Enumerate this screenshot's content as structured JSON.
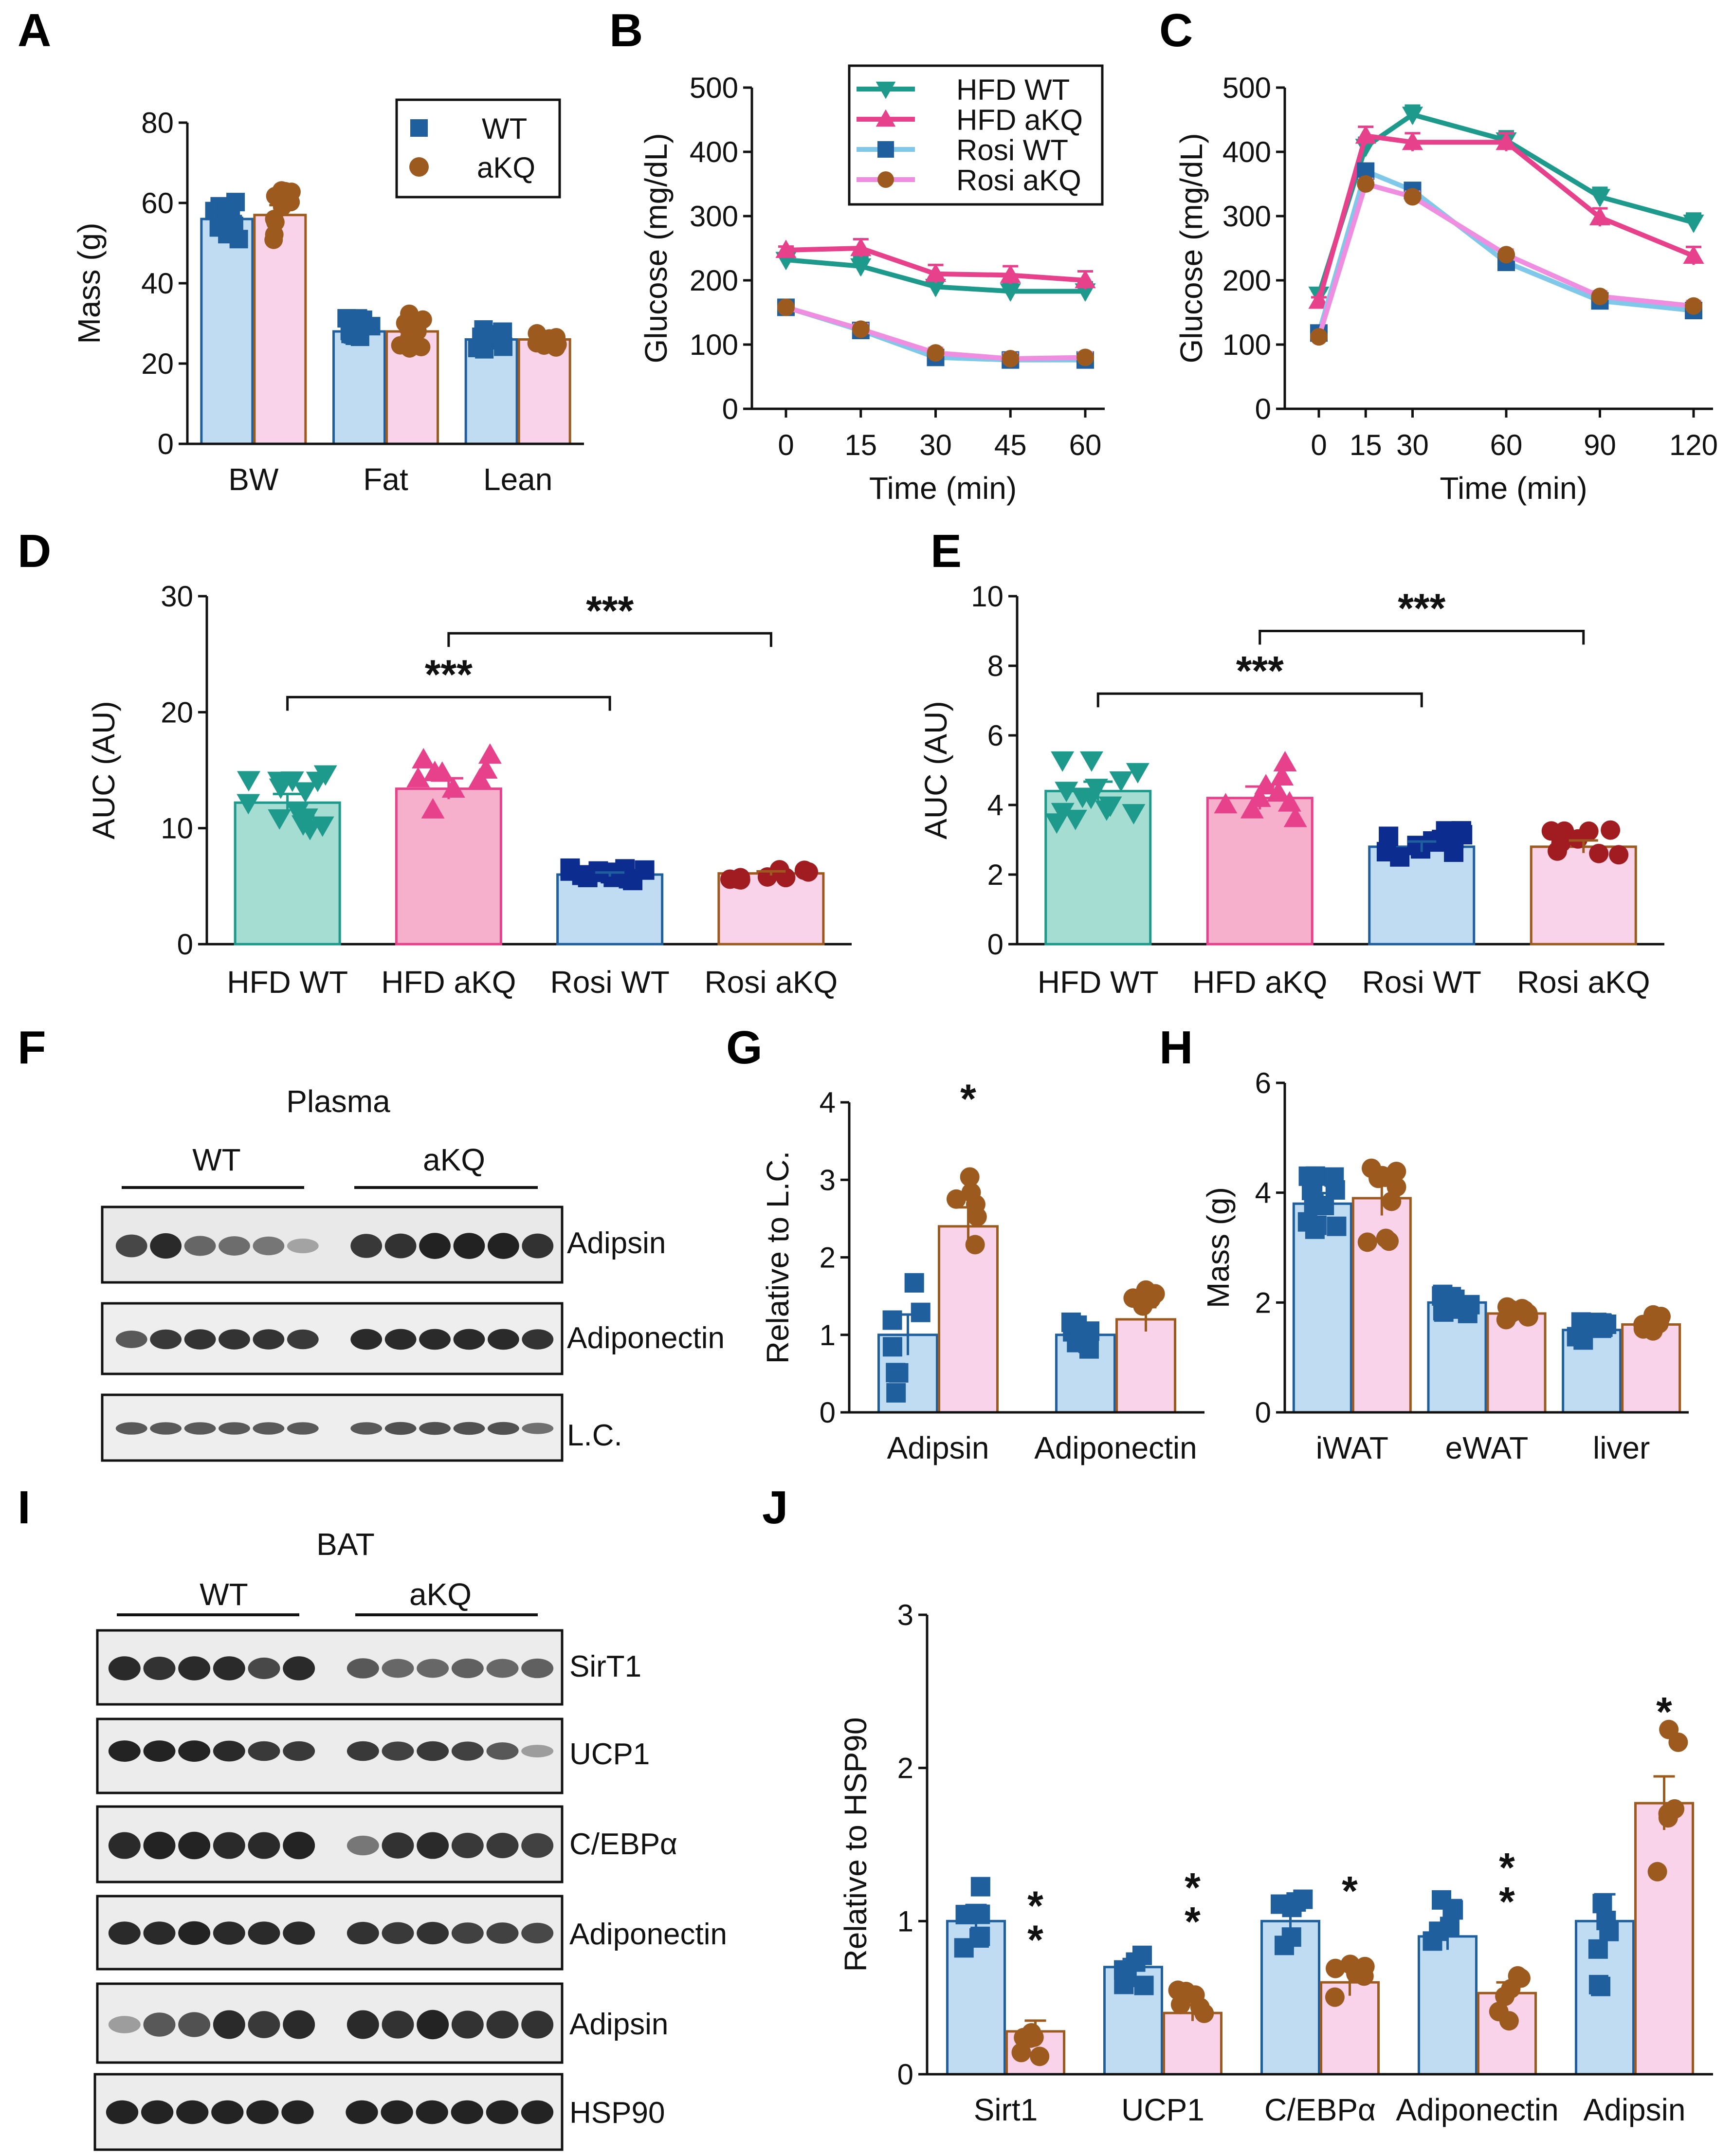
{
  "panel_letters": [
    "A",
    "B",
    "C",
    "D",
    "E",
    "F",
    "G",
    "H",
    "I",
    "J"
  ],
  "colors": {
    "wt_dark": "#1f5f9e",
    "wt_fill": "#bfdcf3",
    "akq_dark": "#9c5a1f",
    "akq_fill": "#f9d3ea",
    "hfd_wt": "#1d9a8c",
    "hfd_akq": "#e8418c",
    "rosi_wt_line": "#7fc8ea",
    "rosi_wt_marker": "#1f5f9e",
    "rosi_akq_line": "#ef8ee0",
    "rosi_akq_marker": "#9c5a1f",
    "d_hfd_wt_fill": "#a6ddd3",
    "d_hfd_akq_fill": "#f7b0cc",
    "d_rosi_wt_fill": "#bfdcf3",
    "d_rosi_akq_fill": "#f9d3ea",
    "d_rosi_wt_marker": "#0d2c8f",
    "d_rosi_akq_marker": "#a01c20"
  },
  "chart_data": [
    {
      "id": "A",
      "type": "bar",
      "title": "",
      "ylabel": "Mass (g)",
      "xlabel": "",
      "ylim": [
        0,
        80
      ],
      "yticks": [
        0,
        20,
        40,
        60,
        80
      ],
      "categories": [
        "BW",
        "Fat",
        "Lean"
      ],
      "legend": [
        "WT",
        "aKQ"
      ],
      "legend_position": "top-right",
      "series": [
        {
          "name": "WT",
          "values": [
            56,
            28,
            26
          ]
        },
        {
          "name": "aKQ",
          "values": [
            57,
            28,
            26
          ]
        }
      ]
    },
    {
      "id": "B",
      "type": "line",
      "ylabel": "Glucose (mg/dL)",
      "xlabel": "Time (min)",
      "ylim": [
        0,
        500
      ],
      "yticks": [
        0,
        100,
        200,
        300,
        400,
        500
      ],
      "x": [
        0,
        15,
        30,
        45,
        60
      ],
      "legend_position": "top-right",
      "series": [
        {
          "name": "HFD WT",
          "values": [
            232,
            222,
            190,
            183,
            183
          ]
        },
        {
          "name": "HFD aKQ",
          "values": [
            247,
            250,
            210,
            208,
            200
          ]
        },
        {
          "name": "Rosi WT",
          "values": [
            158,
            122,
            80,
            76,
            76
          ]
        },
        {
          "name": "Rosi aKQ",
          "values": [
            158,
            124,
            87,
            78,
            80
          ]
        }
      ]
    },
    {
      "id": "C",
      "type": "line",
      "ylabel": "Glucose (mg/dL)",
      "xlabel": "Time (min)",
      "ylim": [
        0,
        500
      ],
      "yticks": [
        0,
        100,
        200,
        300,
        400,
        500
      ],
      "x": [
        0,
        15,
        30,
        60,
        90,
        120
      ],
      "series": [
        {
          "name": "HFD WT",
          "values": [
            178,
            408,
            458,
            418,
            330,
            290
          ]
        },
        {
          "name": "HFD aKQ",
          "values": [
            168,
            425,
            415,
            415,
            298,
            238
          ]
        },
        {
          "name": "Rosi WT",
          "values": [
            118,
            370,
            340,
            228,
            168,
            153
          ]
        },
        {
          "name": "Rosi aKQ",
          "values": [
            112,
            350,
            330,
            240,
            175,
            160
          ]
        }
      ]
    },
    {
      "id": "D",
      "type": "bar",
      "ylabel": "AUC (AU)",
      "xlabel": "",
      "ylim": [
        0,
        30
      ],
      "yticks": [
        0,
        10,
        20,
        30
      ],
      "categories": [
        "HFD WT",
        "HFD aKQ",
        "Rosi WT",
        "Rosi aKQ"
      ],
      "values": [
        12.2,
        13.4,
        6.0,
        6.1
      ],
      "annotations": [
        "***",
        "***"
      ]
    },
    {
      "id": "E",
      "type": "bar",
      "ylabel": "AUC (AU)",
      "xlabel": "",
      "ylim": [
        0,
        10
      ],
      "yticks": [
        0,
        2,
        4,
        6,
        8,
        10
      ],
      "categories": [
        "HFD WT",
        "HFD aKQ",
        "Rosi WT",
        "Rosi aKQ"
      ],
      "values": [
        4.4,
        4.2,
        2.8,
        2.8
      ],
      "annotations": [
        "***",
        "***"
      ]
    },
    {
      "id": "G",
      "type": "bar",
      "ylabel": "Relative to L.C.",
      "xlabel": "",
      "ylim": [
        0,
        4
      ],
      "yticks": [
        0,
        1,
        2,
        3,
        4
      ],
      "categories": [
        "Adipsin",
        "Adiponectin"
      ],
      "series": [
        {
          "name": "WT",
          "values": [
            1.0,
            1.0
          ]
        },
        {
          "name": "aKQ",
          "values": [
            2.4,
            1.2
          ]
        }
      ],
      "annotations": [
        "*"
      ]
    },
    {
      "id": "H",
      "type": "bar",
      "ylabel": "Mass (g)",
      "xlabel": "",
      "ylim": [
        0,
        6
      ],
      "yticks": [
        0,
        2,
        4,
        6
      ],
      "categories": [
        "iWAT",
        "eWAT",
        "liver"
      ],
      "series": [
        {
          "name": "WT",
          "values": [
            3.8,
            2.0,
            1.5
          ]
        },
        {
          "name": "aKQ",
          "values": [
            3.9,
            1.8,
            1.6
          ]
        }
      ]
    },
    {
      "id": "J",
      "type": "bar",
      "ylabel": "Relative to HSP90",
      "xlabel": "",
      "ylim": [
        0,
        3
      ],
      "yticks": [
        0,
        1,
        2,
        3
      ],
      "categories": [
        "Sirt1",
        "UCP1",
        "C/EBPα",
        "Adiponectin",
        "Adipsin"
      ],
      "series": [
        {
          "name": "WT",
          "values": [
            1.0,
            0.7,
            1.0,
            0.9,
            1.0
          ]
        },
        {
          "name": "aKQ",
          "values": [
            0.28,
            0.4,
            0.6,
            0.53,
            1.77
          ]
        }
      ],
      "annotations": [
        "**",
        "**",
        "*",
        "**",
        "*"
      ]
    }
  ],
  "blot_F": {
    "title": "Plasma",
    "groups": [
      "WT",
      "aKQ"
    ],
    "bands": [
      "Adipsin",
      "Adiponectin",
      "L.C."
    ]
  },
  "blot_I": {
    "title": "BAT",
    "groups": [
      "WT",
      "aKQ"
    ],
    "bands": [
      "SirT1",
      "UCP1",
      "C/EBPα",
      "Adiponectin",
      "Adipsin",
      "HSP90"
    ]
  }
}
